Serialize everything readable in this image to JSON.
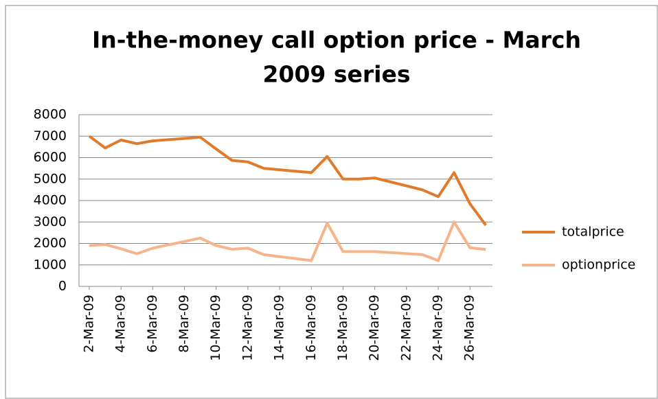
{
  "chart_data": {
    "type": "line",
    "title": [
      "In-the-money call option price - March",
      "2009 series"
    ],
    "x": [
      "2009-03-02",
      "2009-03-03",
      "2009-03-04",
      "2009-03-05",
      "2009-03-06",
      "2009-03-09",
      "2009-03-10",
      "2009-03-11",
      "2009-03-12",
      "2009-03-13",
      "2009-03-16",
      "2009-03-17",
      "2009-03-18",
      "2009-03-19",
      "2009-03-20",
      "2009-03-23",
      "2009-03-24",
      "2009-03-25",
      "2009-03-26",
      "2009-03-27"
    ],
    "series": [
      {
        "name": "totalprice",
        "color": "#e07b2c",
        "values": [
          7000,
          6450,
          6820,
          6650,
          6780,
          6950,
          6400,
          5870,
          5800,
          5500,
          5300,
          6050,
          5000,
          5000,
          5050,
          4500,
          4180,
          5300,
          3850,
          2850
        ]
      },
      {
        "name": "optionprice",
        "color": "#f5b48a",
        "values": [
          1900,
          1950,
          1750,
          1520,
          1780,
          2250,
          1900,
          1730,
          1780,
          1480,
          1200,
          2950,
          1620,
          1620,
          1620,
          1480,
          1200,
          3000,
          1800,
          1720
        ]
      }
    ],
    "xlim": [
      "2009-03-02",
      "2009-03-28"
    ],
    "xticks": [
      {
        "value": "2009-03-02",
        "label": "2-Mar-09"
      },
      {
        "value": "2009-03-04",
        "label": "4-Mar-09"
      },
      {
        "value": "2009-03-06",
        "label": "6-Mar-09"
      },
      {
        "value": "2009-03-08",
        "label": "8-Mar-09"
      },
      {
        "value": "2009-03-10",
        "label": "10-Mar-09"
      },
      {
        "value": "2009-03-12",
        "label": "12-Mar-09"
      },
      {
        "value": "2009-03-14",
        "label": "14-Mar-09"
      },
      {
        "value": "2009-03-16",
        "label": "16-Mar-09"
      },
      {
        "value": "2009-03-18",
        "label": "18-Mar-09"
      },
      {
        "value": "2009-03-20",
        "label": "20-Mar-09"
      },
      {
        "value": "2009-03-22",
        "label": "22-Mar-09"
      },
      {
        "value": "2009-03-24",
        "label": "24-Mar-09"
      },
      {
        "value": "2009-03-26",
        "label": "26-Mar-09"
      }
    ],
    "ylim": [
      0,
      8000
    ],
    "yticks": [
      0,
      1000,
      2000,
      3000,
      4000,
      5000,
      6000,
      7000,
      8000
    ],
    "grid": true,
    "legend": "right"
  }
}
